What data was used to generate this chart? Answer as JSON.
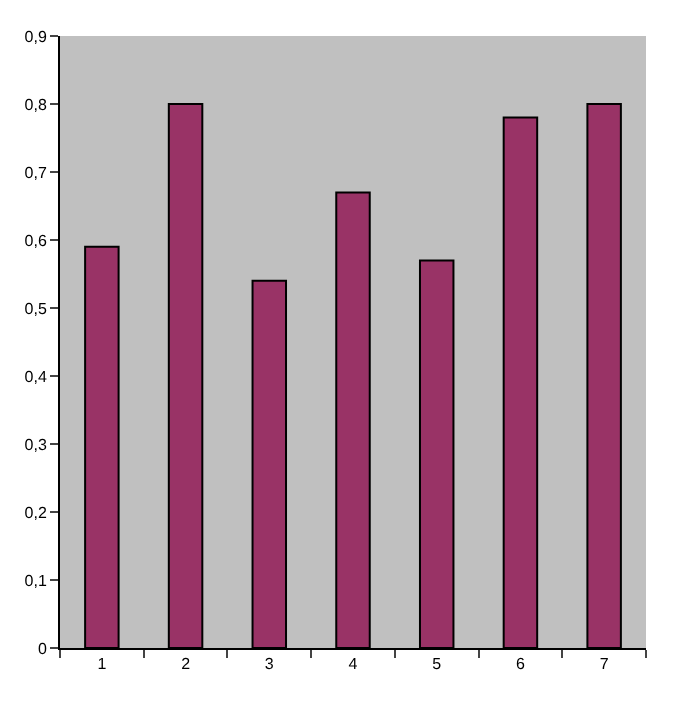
{
  "chart_data": {
    "type": "bar",
    "categories": [
      "1",
      "2",
      "3",
      "4",
      "5",
      "6",
      "7"
    ],
    "values": [
      0.59,
      0.8,
      0.54,
      0.67,
      0.57,
      0.78,
      0.8
    ],
    "color": "#993366",
    "ylim": [
      0,
      0.9
    ],
    "yticks": [
      0,
      {
        "value": 0.1,
        "label": "0,1"
      },
      {
        "value": 0.2,
        "label": "0,2"
      },
      {
        "value": 0.3,
        "label": "0,3"
      },
      {
        "value": 0.4,
        "label": "0,4"
      },
      {
        "value": 0.5,
        "label": "0,5"
      },
      {
        "value": 0.6,
        "label": "0,6"
      },
      {
        "value": 0.7,
        "label": "0,7"
      },
      {
        "value": 0.8,
        "label": "0,8"
      },
      {
        "value": 0.9,
        "label": "0,9"
      }
    ],
    "grid": false,
    "legend": false
  }
}
